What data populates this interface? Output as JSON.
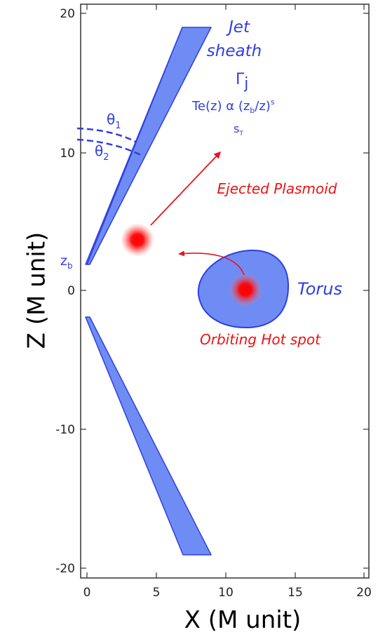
{
  "axes": {
    "xlabel": "X (M unit)",
    "ylabel": "Z (M unit)",
    "xlim": [
      0,
      20
    ],
    "ylim": [
      -20,
      20
    ],
    "x_ticks": [
      "0",
      "5",
      "10",
      "15",
      "20"
    ],
    "y_ticks": [
      "20",
      "10",
      "0",
      "-10",
      "-20"
    ]
  },
  "labels": {
    "jet": "Jet",
    "sheath": "sheath",
    "gamma": "Γ",
    "gamma_sub": "j",
    "te_main": "Te(z) α (z",
    "te_sub": "b",
    "te_mid": "/z)",
    "te_sup": "s",
    "s_main": "s",
    "s_sub": "T",
    "theta1": "θ",
    "theta1_sub": "1",
    "theta2": "θ",
    "theta2_sub": "2",
    "zb": "z",
    "zb_sub": "b",
    "ejected_plasmoid": "Ejected Plasmoid",
    "torus": "Torus",
    "orbiting_hot_spot": "Orbiting Hot spot"
  },
  "colors": {
    "jet_fill": "#6f8cf5",
    "jet_stroke": "#2f3fe0",
    "torus_fill": "#6f8cf5",
    "hot": "#ff0000",
    "arrow": "#ee2222"
  }
}
